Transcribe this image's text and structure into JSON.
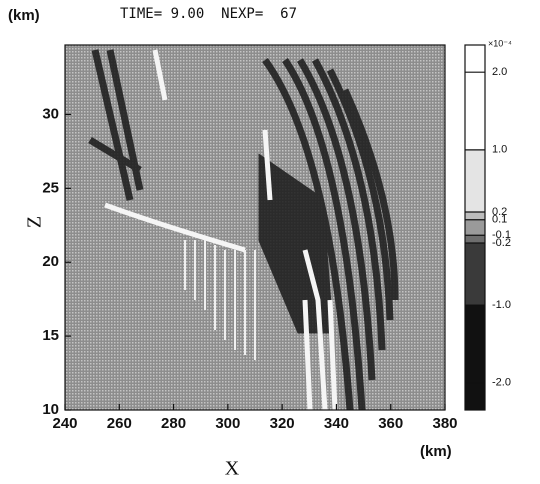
{
  "chart_data": {
    "type": "heatmap",
    "title": "TIME= 9.00  NEXP=  67",
    "y_unit": "(km)",
    "x_unit": "(km)",
    "xlabel": "X",
    "ylabel": "Z",
    "xlim": [
      240,
      380
    ],
    "xticks": [
      240,
      260,
      280,
      300,
      320,
      340,
      360,
      380
    ],
    "ylim": [
      10,
      34.7
    ],
    "yticks": [
      10,
      15,
      20,
      25,
      30
    ],
    "colorbar": {
      "scale_label": "×10⁻⁴",
      "clim": [
        -2.35,
        2.35
      ],
      "ticks": [
        {
          "value": 2.0,
          "label": "2.0"
        },
        {
          "value": 1.0,
          "label": "1.0"
        },
        {
          "value": 0.2,
          "label": "0.2"
        },
        {
          "value": 0.1,
          "label": "0.1"
        },
        {
          "value": -0.1,
          "label": "-0.1"
        },
        {
          "value": -0.2,
          "label": "-0.2"
        },
        {
          "value": -1.0,
          "label": "-1.0"
        },
        {
          "value": -2.0,
          "label": "-2.0"
        }
      ],
      "band_colors": [
        "#ffffff",
        "#ffffff",
        "#e4e4e4",
        "#bdbdbd",
        "#9a9a9a",
        "#6e6e6e",
        "#3a3a3a",
        "#111111",
        "#111111"
      ]
    }
  }
}
